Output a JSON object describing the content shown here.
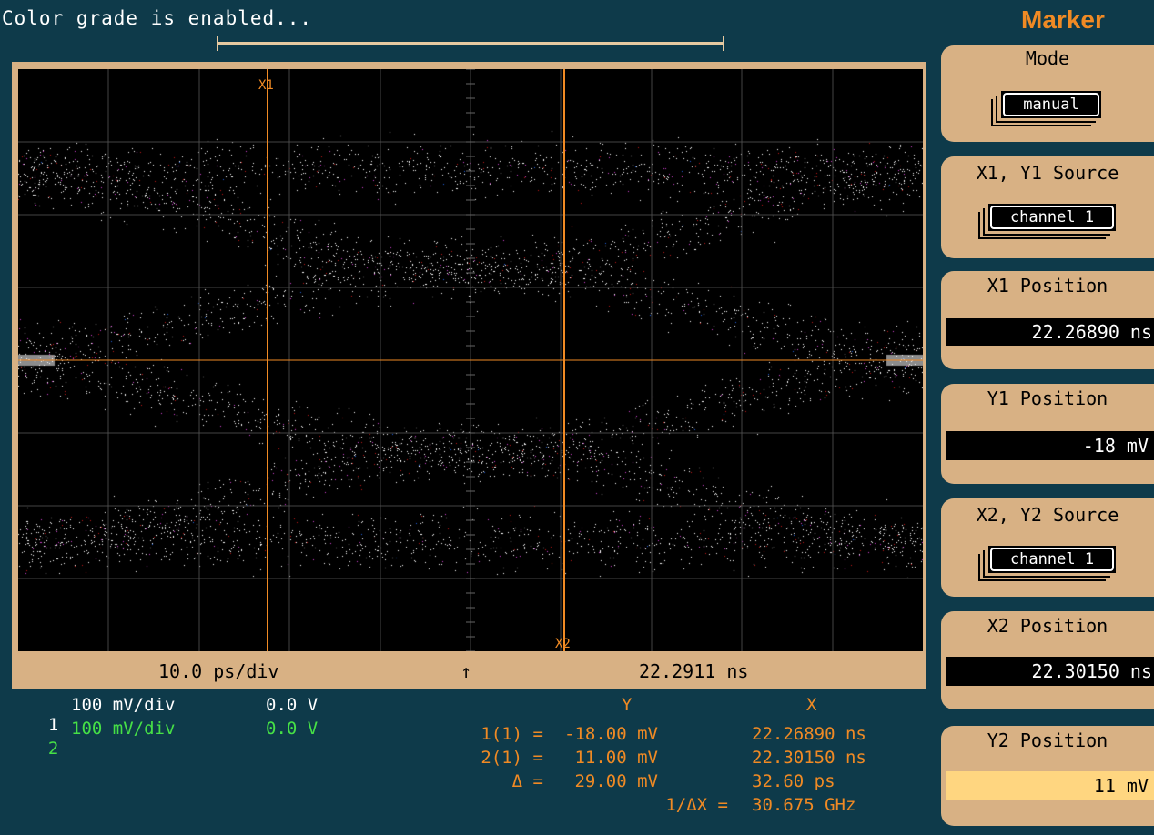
{
  "status_text": "Color grade is enabled...",
  "time_bar": {
    "scale": "10.0 ps/div",
    "arrow": "↑",
    "position": "22.2911 ns"
  },
  "channels": [
    {
      "num": "1",
      "scale": "100 mV/div",
      "offset": "0.0 V",
      "color": "#ffffff"
    },
    {
      "num": "2",
      "scale": "100 mV/div",
      "offset": "0.0 V",
      "color": "#46e046"
    }
  ],
  "markers_on_screen": {
    "x1": "X1",
    "x2": "X2"
  },
  "measurements": {
    "col_y": "Y",
    "col_x": "X",
    "rows": [
      {
        "label": "1(1) =",
        "y": "-18.00 mV",
        "x": "22.26890 ns"
      },
      {
        "label": "2(1) =",
        "y": "11.00 mV",
        "x": "22.30150 ns"
      },
      {
        "label": "Δ =",
        "y": "29.00 mV",
        "x": "32.60 ps"
      },
      {
        "label": "1/ΔX =",
        "y": "",
        "x": "30.675 GHz"
      }
    ]
  },
  "menu": {
    "title": "Marker",
    "mode": {
      "label": "Mode",
      "value": "manual"
    },
    "x1y1_source": {
      "label": "X1, Y1 Source",
      "value": "channel 1"
    },
    "x1_position": {
      "label": "X1 Position",
      "value": "22.26890 ns"
    },
    "y1_position": {
      "label": "Y1 Position",
      "value": "-18 mV"
    },
    "x2y2_source": {
      "label": "X2, Y2 Source",
      "value": "channel 1"
    },
    "x2_position": {
      "label": "X2 Position",
      "value": "22.30150 ns"
    },
    "y2_position": {
      "label": "Y2 Position",
      "value": "11 mV"
    }
  },
  "colors": {
    "background": "#0e3a4a",
    "frame": "#d8b184",
    "accent": "#f08a24",
    "marker_line": "#f08a24",
    "grid": "#5a5a5a"
  }
}
